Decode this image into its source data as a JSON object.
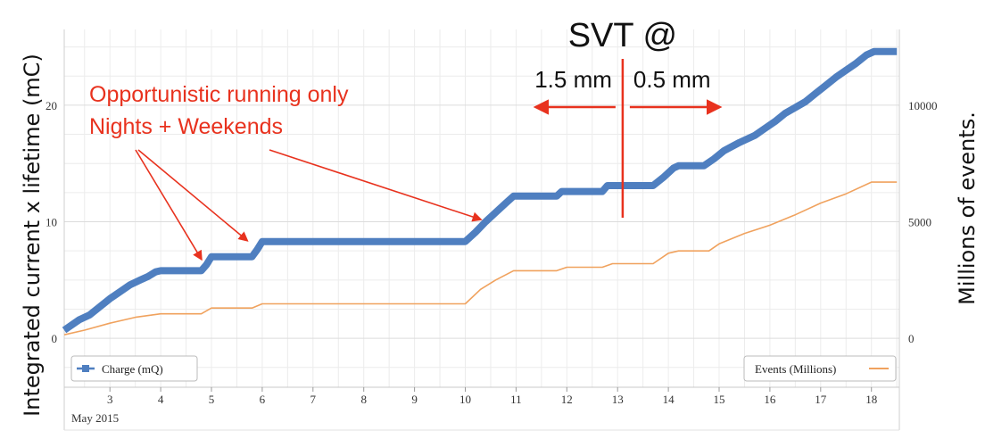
{
  "chart_data": {
    "type": "line",
    "x_unit": "day of May 2015",
    "x_ticks": [
      3,
      4,
      5,
      6,
      7,
      8,
      9,
      10,
      11,
      12,
      13,
      14,
      15,
      16,
      17,
      18
    ],
    "x_sublabel": "May 2015",
    "xlim": [
      2.1,
      18.55
    ],
    "y_left": {
      "label": "Integrated current x lifetime (mC)",
      "ticks": [
        0,
        10,
        20
      ],
      "lim": [
        -4.2,
        26.5
      ]
    },
    "y_right": {
      "label": "Millions of events.",
      "ticks": [
        0,
        5000,
        10000
      ],
      "lim": [
        -2100,
        13250
      ]
    },
    "series": [
      {
        "name": "Charge (mQ)",
        "axis": "left",
        "color": "#4f7fc0",
        "points": [
          [
            2.1,
            0.7
          ],
          [
            2.4,
            1.6
          ],
          [
            2.6,
            2.0
          ],
          [
            2.8,
            2.7
          ],
          [
            3.0,
            3.4
          ],
          [
            3.2,
            4.0
          ],
          [
            3.4,
            4.6
          ],
          [
            3.6,
            5.0
          ],
          [
            3.75,
            5.3
          ],
          [
            3.9,
            5.7
          ],
          [
            4.0,
            5.8
          ],
          [
            4.8,
            5.8
          ],
          [
            4.9,
            6.3
          ],
          [
            5.0,
            7.0
          ],
          [
            5.8,
            7.0
          ],
          [
            5.9,
            7.6
          ],
          [
            6.0,
            8.3
          ],
          [
            10.0,
            8.3
          ],
          [
            10.2,
            9.1
          ],
          [
            10.4,
            10.0
          ],
          [
            10.6,
            10.8
          ],
          [
            10.8,
            11.6
          ],
          [
            10.95,
            12.2
          ],
          [
            11.8,
            12.2
          ],
          [
            11.9,
            12.6
          ],
          [
            12.7,
            12.6
          ],
          [
            12.8,
            13.1
          ],
          [
            13.7,
            13.1
          ],
          [
            13.9,
            13.8
          ],
          [
            14.1,
            14.6
          ],
          [
            14.2,
            14.8
          ],
          [
            14.7,
            14.8
          ],
          [
            14.9,
            15.4
          ],
          [
            15.1,
            16.1
          ],
          [
            15.4,
            16.8
          ],
          [
            15.7,
            17.4
          ],
          [
            15.9,
            18.0
          ],
          [
            16.1,
            18.6
          ],
          [
            16.3,
            19.3
          ],
          [
            16.5,
            19.8
          ],
          [
            16.7,
            20.3
          ],
          [
            16.9,
            21.0
          ],
          [
            17.1,
            21.7
          ],
          [
            17.3,
            22.4
          ],
          [
            17.5,
            23.0
          ],
          [
            17.7,
            23.6
          ],
          [
            17.9,
            24.3
          ],
          [
            18.05,
            24.6
          ],
          [
            18.5,
            24.6
          ]
        ]
      },
      {
        "name": "Events (Millions)",
        "axis": "right",
        "color": "#f0a25e",
        "points": [
          [
            2.1,
            150
          ],
          [
            2.5,
            350
          ],
          [
            3.0,
            650
          ],
          [
            3.5,
            900
          ],
          [
            4.0,
            1050
          ],
          [
            4.8,
            1050
          ],
          [
            5.0,
            1300
          ],
          [
            5.8,
            1300
          ],
          [
            6.0,
            1480
          ],
          [
            10.0,
            1480
          ],
          [
            10.3,
            2100
          ],
          [
            10.6,
            2500
          ],
          [
            10.95,
            2900
          ],
          [
            11.8,
            2900
          ],
          [
            12.0,
            3050
          ],
          [
            12.7,
            3050
          ],
          [
            12.9,
            3200
          ],
          [
            13.7,
            3200
          ],
          [
            14.0,
            3650
          ],
          [
            14.2,
            3750
          ],
          [
            14.8,
            3750
          ],
          [
            15.0,
            4050
          ],
          [
            15.5,
            4500
          ],
          [
            16.0,
            4850
          ],
          [
            16.5,
            5300
          ],
          [
            17.0,
            5800
          ],
          [
            17.5,
            6200
          ],
          [
            18.0,
            6700
          ],
          [
            18.5,
            6700
          ]
        ]
      }
    ],
    "grid": true,
    "legend": [
      {
        "name": "Charge (mQ)",
        "placement": "bottom-left"
      },
      {
        "name": "Events (Millions)",
        "placement": "bottom-right"
      }
    ],
    "annotations": {
      "running_note_line1": "Opportunistic running only",
      "running_note_line2": "Nights + Weekends",
      "svt_title": "SVT @",
      "svt_left_label": "1.5 mm",
      "svt_right_label": "0.5 mm",
      "svt_marker_x": 13.1,
      "arrow_targets": [
        {
          "x": 4.8,
          "y": 6.8
        },
        {
          "x": 5.7,
          "y": 8.4
        },
        {
          "x": 10.3,
          "y": 10.2
        }
      ]
    }
  }
}
